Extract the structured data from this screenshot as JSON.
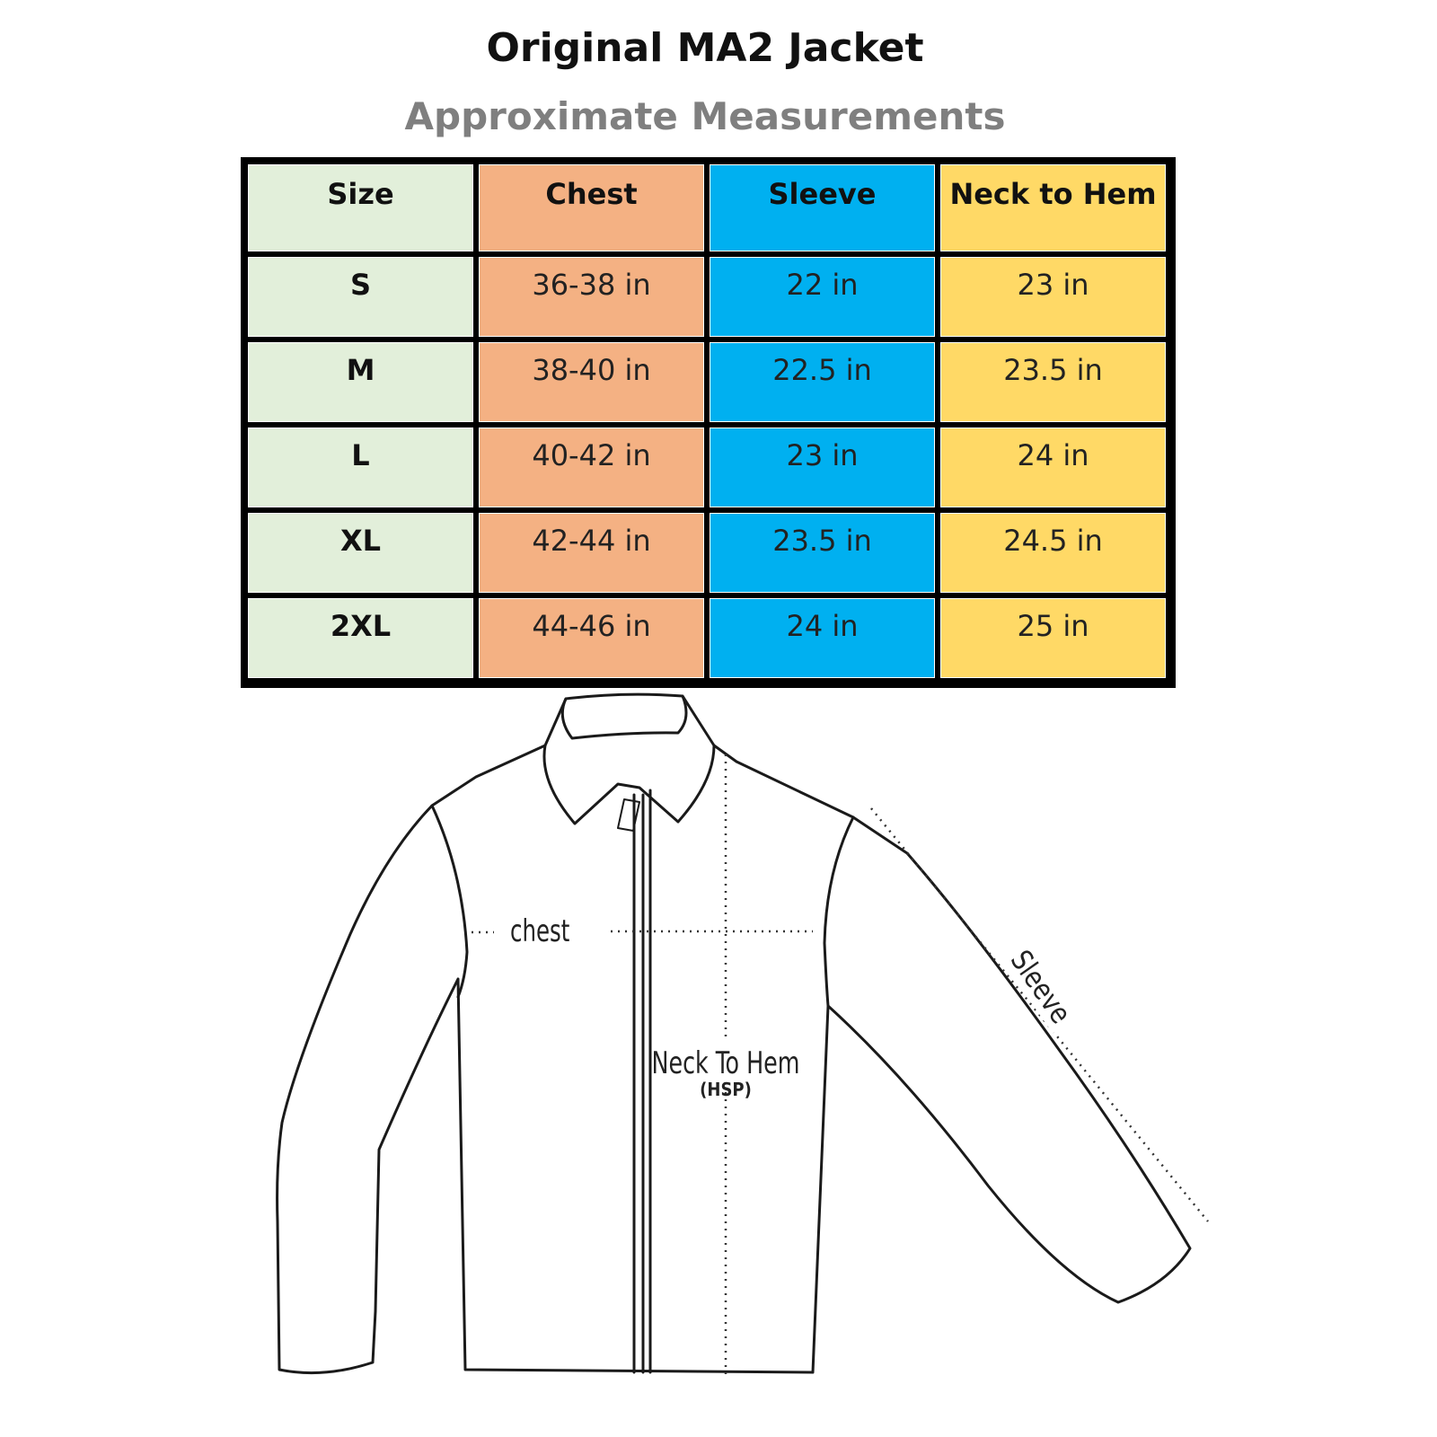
{
  "title": "Original MA2 Jacket",
  "subtitle": "Approximate Measurements",
  "colors": {
    "size": "#e2efda",
    "chest": "#f4b183",
    "sleeve": "#00b0f0",
    "neck_to_hem": "#ffd966"
  },
  "table": {
    "headers": [
      "Size",
      "Chest",
      "Sleeve",
      "Neck to Hem"
    ],
    "rows": [
      [
        "S",
        "36-38 in",
        "22 in",
        "23 in"
      ],
      [
        "M",
        "38-40 in",
        "22.5 in",
        "23.5 in"
      ],
      [
        "L",
        "40-42 in",
        "23 in",
        "24 in"
      ],
      [
        "XL",
        "42-44 in",
        "23.5 in",
        "24.5 in"
      ],
      [
        "2XL",
        "44-46 in",
        "24 in",
        "25 in"
      ]
    ]
  },
  "diagram": {
    "chest_label": "chest",
    "neck_to_hem_label": "Neck To Hem",
    "neck_to_hem_sub": "(HSP)",
    "sleeve_label": "Sleeve"
  }
}
